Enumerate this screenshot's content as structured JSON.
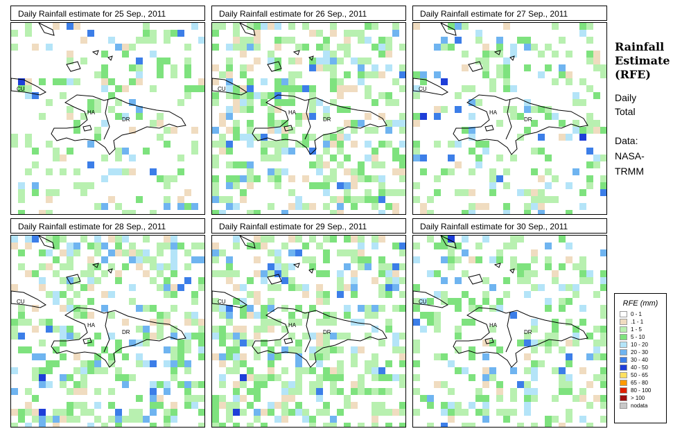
{
  "panels": [
    {
      "title": "Daily Rainfall estimate for  25 Sep., 2011",
      "seed": 25,
      "wet": 0.22
    },
    {
      "title": "Daily Rainfall estimate for  26 Sep., 2011",
      "seed": 26,
      "wet": 0.45
    },
    {
      "title": "Daily Rainfall estimate for  27 Sep., 2011",
      "seed": 27,
      "wet": 0.28
    },
    {
      "title": "Daily Rainfall estimate for  28 Sep., 2011",
      "seed": 28,
      "wet": 0.42
    },
    {
      "title": "Daily Rainfall estimate for  29 Sep., 2011",
      "seed": 29,
      "wet": 0.5
    },
    {
      "title": "Daily Rainfall estimate for  30 Sep., 2011",
      "seed": 30,
      "wet": 0.35
    }
  ],
  "map_labels": {
    "cu": "CU",
    "ha": "HA",
    "dr": "DR"
  },
  "side": {
    "title_line1": "Rainfall",
    "title_line2": "Estimate",
    "title_line3": "(RFE)",
    "daily_line1": "Daily",
    "daily_line2": "Total",
    "data_line1": "Data:",
    "data_line2": "NASA-",
    "data_line3": "TRMM"
  },
  "legend": {
    "title": "RFE (mm)",
    "items": [
      {
        "label": "0 - 1",
        "color": "#ffffff"
      },
      {
        "label": ".1 - 1",
        "color": "#f0dcc0"
      },
      {
        "label": "1 - 5",
        "color": "#b8f0b0"
      },
      {
        "label": "5 - 10",
        "color": "#7ee27e"
      },
      {
        "label": "10 - 20",
        "color": "#b4e4f8"
      },
      {
        "label": "20 - 30",
        "color": "#6fb4f0"
      },
      {
        "label": "30 - 40",
        "color": "#3c7ee8"
      },
      {
        "label": "40 - 50",
        "color": "#1e3ed8"
      },
      {
        "label": "50 - 65",
        "color": "#ffe060"
      },
      {
        "label": "65 - 80",
        "color": "#ff9a00"
      },
      {
        "label": "80 - 100",
        "color": "#e02000"
      },
      {
        "label": "> 100",
        "color": "#a01010"
      },
      {
        "label": "nodata",
        "color": "#c8c8c8"
      }
    ]
  }
}
